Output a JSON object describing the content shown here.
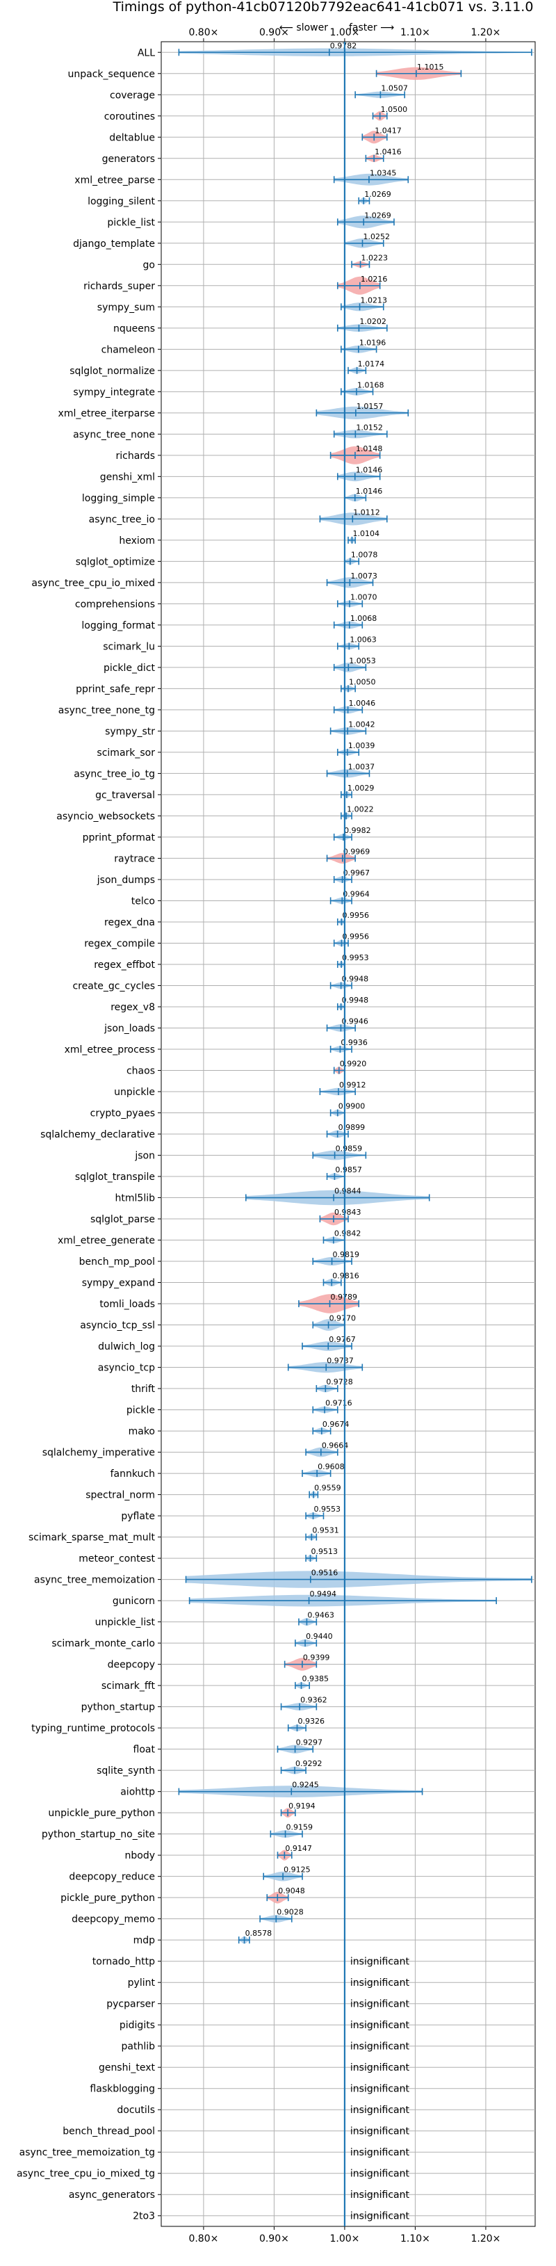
{
  "chart_data": {
    "type": "violin",
    "title": "Timings of python-41cb07120b7792eac641-41cb071 vs. 3.11.0",
    "annotation_slower": "⟵ slower",
    "annotation_faster": "faster ⟶",
    "xlim": [
      0.74,
      1.27
    ],
    "xticks": [
      "0.80×",
      "0.90×",
      "1.00×",
      "1.10×",
      "1.20×"
    ],
    "xtick_values": [
      0.8,
      0.9,
      1.0,
      1.1,
      1.2
    ],
    "grid": true,
    "reference_line": 1.0,
    "insignificant_label": "insignificant",
    "colors": {
      "normal": "#a6c9e6",
      "highlight": "#f4a6a6",
      "line": "#1f77b4",
      "grid": "#b0b0b0"
    },
    "benchmarks": [
      {
        "name": "ALL",
        "label": "0.9782",
        "mean": 0.9782,
        "lo": 0.765,
        "hi": 1.265,
        "w": 0.38,
        "color": "blue"
      },
      {
        "name": "unpack_sequence",
        "label": "1.1015",
        "mean": 1.1015,
        "lo": 1.045,
        "hi": 1.165,
        "w": 0.6,
        "color": "red"
      },
      {
        "name": "coverage",
        "label": "1.0507",
        "mean": 1.0507,
        "lo": 1.015,
        "hi": 1.085,
        "w": 0.3,
        "color": "blue"
      },
      {
        "name": "coroutines",
        "label": "1.0500",
        "mean": 1.05,
        "lo": 1.04,
        "hi": 1.06,
        "w": 0.45,
        "color": "red"
      },
      {
        "name": "deltablue",
        "label": "1.0417",
        "mean": 1.0417,
        "lo": 1.025,
        "hi": 1.06,
        "w": 0.6,
        "color": "red"
      },
      {
        "name": "generators",
        "label": "1.0416",
        "mean": 1.0416,
        "lo": 1.03,
        "hi": 1.055,
        "w": 0.35,
        "color": "red"
      },
      {
        "name": "xml_etree_parse",
        "label": "1.0345",
        "mean": 1.0345,
        "lo": 0.985,
        "hi": 1.09,
        "w": 0.55,
        "color": "blue"
      },
      {
        "name": "logging_silent",
        "label": "1.0269",
        "mean": 1.0269,
        "lo": 1.02,
        "hi": 1.035,
        "w": 0.3,
        "color": "blue"
      },
      {
        "name": "pickle_list",
        "label": "1.0269",
        "mean": 1.0269,
        "lo": 0.99,
        "hi": 1.07,
        "w": 0.6,
        "color": "blue"
      },
      {
        "name": "django_template",
        "label": "1.0252",
        "mean": 1.0252,
        "lo": 1.0,
        "hi": 1.055,
        "w": 0.45,
        "color": "blue"
      },
      {
        "name": "go",
        "label": "1.0223",
        "mean": 1.0223,
        "lo": 1.01,
        "hi": 1.035,
        "w": 0.3,
        "color": "red"
      },
      {
        "name": "richards_super",
        "label": "1.0216",
        "mean": 1.0216,
        "lo": 0.99,
        "hi": 1.05,
        "w": 0.85,
        "color": "red"
      },
      {
        "name": "sympy_sum",
        "label": "1.0213",
        "mean": 1.0213,
        "lo": 0.995,
        "hi": 1.055,
        "w": 0.4,
        "color": "blue"
      },
      {
        "name": "nqueens",
        "label": "1.0202",
        "mean": 1.0202,
        "lo": 0.99,
        "hi": 1.06,
        "w": 0.35,
        "color": "blue"
      },
      {
        "name": "chameleon",
        "label": "1.0196",
        "mean": 1.0196,
        "lo": 0.995,
        "hi": 1.045,
        "w": 0.35,
        "color": "blue"
      },
      {
        "name": "sqlglot_normalize",
        "label": "1.0174",
        "mean": 1.0174,
        "lo": 1.005,
        "hi": 1.03,
        "w": 0.3,
        "color": "blue"
      },
      {
        "name": "sympy_integrate",
        "label": "1.0168",
        "mean": 1.0168,
        "lo": 0.995,
        "hi": 1.04,
        "w": 0.35,
        "color": "blue"
      },
      {
        "name": "xml_etree_iterparse",
        "label": "1.0157",
        "mean": 1.0157,
        "lo": 0.96,
        "hi": 1.09,
        "w": 0.6,
        "color": "blue"
      },
      {
        "name": "async_tree_none",
        "label": "1.0152",
        "mean": 1.0152,
        "lo": 0.985,
        "hi": 1.06,
        "w": 0.4,
        "color": "blue"
      },
      {
        "name": "richards",
        "label": "1.0148",
        "mean": 1.0148,
        "lo": 0.98,
        "hi": 1.05,
        "w": 0.85,
        "color": "red"
      },
      {
        "name": "genshi_xml",
        "label": "1.0146",
        "mean": 1.0146,
        "lo": 0.99,
        "hi": 1.05,
        "w": 0.45,
        "color": "blue"
      },
      {
        "name": "logging_simple",
        "label": "1.0146",
        "mean": 1.0146,
        "lo": 1.0,
        "hi": 1.03,
        "w": 0.35,
        "color": "blue"
      },
      {
        "name": "async_tree_io",
        "label": "1.0112",
        "mean": 1.0112,
        "lo": 0.965,
        "hi": 1.06,
        "w": 0.6,
        "color": "blue"
      },
      {
        "name": "hexiom",
        "label": "1.0104",
        "mean": 1.0104,
        "lo": 1.005,
        "hi": 1.015,
        "w": 0.3,
        "color": "blue"
      },
      {
        "name": "sqlglot_optimize",
        "label": "1.0078",
        "mean": 1.0078,
        "lo": 1.0,
        "hi": 1.02,
        "w": 0.3,
        "color": "blue"
      },
      {
        "name": "async_tree_cpu_io_mixed",
        "label": "1.0073",
        "mean": 1.0073,
        "lo": 0.975,
        "hi": 1.04,
        "w": 0.5,
        "color": "blue"
      },
      {
        "name": "comprehensions",
        "label": "1.0070",
        "mean": 1.007,
        "lo": 0.99,
        "hi": 1.025,
        "w": 0.3,
        "color": "blue"
      },
      {
        "name": "logging_format",
        "label": "1.0068",
        "mean": 1.0068,
        "lo": 0.985,
        "hi": 1.025,
        "w": 0.35,
        "color": "blue"
      },
      {
        "name": "scimark_lu",
        "label": "1.0063",
        "mean": 1.0063,
        "lo": 0.99,
        "hi": 1.02,
        "w": 0.3,
        "color": "blue"
      },
      {
        "name": "pickle_dict",
        "label": "1.0053",
        "mean": 1.0053,
        "lo": 0.985,
        "hi": 1.03,
        "w": 0.45,
        "color": "blue"
      },
      {
        "name": "pprint_safe_repr",
        "label": "1.0050",
        "mean": 1.005,
        "lo": 0.995,
        "hi": 1.015,
        "w": 0.3,
        "color": "blue"
      },
      {
        "name": "async_tree_none_tg",
        "label": "1.0046",
        "mean": 1.0046,
        "lo": 0.985,
        "hi": 1.025,
        "w": 0.35,
        "color": "blue"
      },
      {
        "name": "sympy_str",
        "label": "1.0042",
        "mean": 1.0042,
        "lo": 0.98,
        "hi": 1.03,
        "w": 0.35,
        "color": "blue"
      },
      {
        "name": "scimark_sor",
        "label": "1.0039",
        "mean": 1.0039,
        "lo": 0.99,
        "hi": 1.02,
        "w": 0.3,
        "color": "blue"
      },
      {
        "name": "async_tree_io_tg",
        "label": "1.0037",
        "mean": 1.0037,
        "lo": 0.975,
        "hi": 1.035,
        "w": 0.4,
        "color": "blue"
      },
      {
        "name": "gc_traversal",
        "label": "1.0029",
        "mean": 1.0029,
        "lo": 0.995,
        "hi": 1.01,
        "w": 0.3,
        "color": "blue"
      },
      {
        "name": "asyncio_websockets",
        "label": "1.0022",
        "mean": 1.0022,
        "lo": 0.995,
        "hi": 1.01,
        "w": 0.3,
        "color": "blue"
      },
      {
        "name": "pprint_pformat",
        "label": "0.9982",
        "mean": 0.9982,
        "lo": 0.985,
        "hi": 1.01,
        "w": 0.3,
        "color": "blue"
      },
      {
        "name": "raytrace",
        "label": "0.9969",
        "mean": 0.9969,
        "lo": 0.975,
        "hi": 1.015,
        "w": 0.5,
        "color": "red"
      },
      {
        "name": "json_dumps",
        "label": "0.9967",
        "mean": 0.9967,
        "lo": 0.985,
        "hi": 1.01,
        "w": 0.3,
        "color": "blue"
      },
      {
        "name": "telco",
        "label": "0.9964",
        "mean": 0.9964,
        "lo": 0.98,
        "hi": 1.01,
        "w": 0.3,
        "color": "blue"
      },
      {
        "name": "regex_dna",
        "label": "0.9956",
        "mean": 0.9956,
        "lo": 0.99,
        "hi": 1.0,
        "w": 0.3,
        "color": "blue"
      },
      {
        "name": "regex_compile",
        "label": "0.9956",
        "mean": 0.9956,
        "lo": 0.985,
        "hi": 1.005,
        "w": 0.3,
        "color": "blue"
      },
      {
        "name": "regex_effbot",
        "label": "0.9953",
        "mean": 0.9953,
        "lo": 0.99,
        "hi": 1.0,
        "w": 0.3,
        "color": "blue"
      },
      {
        "name": "create_gc_cycles",
        "label": "0.9948",
        "mean": 0.9948,
        "lo": 0.98,
        "hi": 1.01,
        "w": 0.3,
        "color": "blue"
      },
      {
        "name": "regex_v8",
        "label": "0.9948",
        "mean": 0.9948,
        "lo": 0.99,
        "hi": 1.0,
        "w": 0.3,
        "color": "blue"
      },
      {
        "name": "json_loads",
        "label": "0.9946",
        "mean": 0.9946,
        "lo": 0.975,
        "hi": 1.015,
        "w": 0.35,
        "color": "blue"
      },
      {
        "name": "xml_etree_process",
        "label": "0.9936",
        "mean": 0.9936,
        "lo": 0.98,
        "hi": 1.01,
        "w": 0.3,
        "color": "blue"
      },
      {
        "name": "chaos",
        "label": "0.9920",
        "mean": 0.992,
        "lo": 0.985,
        "hi": 1.0,
        "w": 0.35,
        "color": "red"
      },
      {
        "name": "unpickle",
        "label": "0.9912",
        "mean": 0.9912,
        "lo": 0.965,
        "hi": 1.015,
        "w": 0.35,
        "color": "blue"
      },
      {
        "name": "crypto_pyaes",
        "label": "0.9900",
        "mean": 0.99,
        "lo": 0.98,
        "hi": 1.0,
        "w": 0.3,
        "color": "blue"
      },
      {
        "name": "sqlalchemy_declarative",
        "label": "0.9899",
        "mean": 0.9899,
        "lo": 0.975,
        "hi": 1.005,
        "w": 0.35,
        "color": "blue"
      },
      {
        "name": "json",
        "label": "0.9859",
        "mean": 0.9859,
        "lo": 0.955,
        "hi": 1.03,
        "w": 0.45,
        "color": "blue"
      },
      {
        "name": "sqlglot_transpile",
        "label": "0.9857",
        "mean": 0.9857,
        "lo": 0.975,
        "hi": 1.0,
        "w": 0.3,
        "color": "blue"
      },
      {
        "name": "html5lib",
        "label": "0.9844",
        "mean": 0.9844,
        "lo": 0.86,
        "hi": 1.12,
        "w": 0.7,
        "color": "blue"
      },
      {
        "name": "sqlglot_parse",
        "label": "0.9843",
        "mean": 0.9843,
        "lo": 0.965,
        "hi": 1.005,
        "w": 0.6,
        "color": "red"
      },
      {
        "name": "xml_etree_generate",
        "label": "0.9842",
        "mean": 0.9842,
        "lo": 0.97,
        "hi": 1.0,
        "w": 0.3,
        "color": "blue"
      },
      {
        "name": "bench_mp_pool",
        "label": "0.9819",
        "mean": 0.9819,
        "lo": 0.955,
        "hi": 1.01,
        "w": 0.4,
        "color": "blue"
      },
      {
        "name": "sympy_expand",
        "label": "0.9816",
        "mean": 0.9816,
        "lo": 0.97,
        "hi": 0.995,
        "w": 0.35,
        "color": "blue"
      },
      {
        "name": "tomli_loads",
        "label": "0.9789",
        "mean": 0.9789,
        "lo": 0.935,
        "hi": 1.02,
        "w": 0.9,
        "color": "red"
      },
      {
        "name": "asyncio_tcp_ssl",
        "label": "0.9770",
        "mean": 0.977,
        "lo": 0.955,
        "hi": 1.0,
        "w": 0.55,
        "color": "blue"
      },
      {
        "name": "dulwich_log",
        "label": "0.9767",
        "mean": 0.9767,
        "lo": 0.94,
        "hi": 1.01,
        "w": 0.45,
        "color": "blue"
      },
      {
        "name": "asyncio_tcp",
        "label": "0.9737",
        "mean": 0.9737,
        "lo": 0.92,
        "hi": 1.025,
        "w": 0.5,
        "color": "blue"
      },
      {
        "name": "thrift",
        "label": "0.9728",
        "mean": 0.9728,
        "lo": 0.96,
        "hi": 0.99,
        "w": 0.35,
        "color": "blue"
      },
      {
        "name": "pickle",
        "label": "0.9716",
        "mean": 0.9716,
        "lo": 0.955,
        "hi": 0.99,
        "w": 0.3,
        "color": "blue"
      },
      {
        "name": "mako",
        "label": "0.9674",
        "mean": 0.9674,
        "lo": 0.955,
        "hi": 0.98,
        "w": 0.3,
        "color": "blue"
      },
      {
        "name": "sqlalchemy_imperative",
        "label": "0.9664",
        "mean": 0.9664,
        "lo": 0.945,
        "hi": 0.99,
        "w": 0.45,
        "color": "blue"
      },
      {
        "name": "fannkuch",
        "label": "0.9608",
        "mean": 0.9608,
        "lo": 0.94,
        "hi": 0.98,
        "w": 0.35,
        "color": "blue"
      },
      {
        "name": "spectral_norm",
        "label": "0.9559",
        "mean": 0.9559,
        "lo": 0.95,
        "hi": 0.962,
        "w": 0.3,
        "color": "blue"
      },
      {
        "name": "pyflate",
        "label": "0.9553",
        "mean": 0.9553,
        "lo": 0.945,
        "hi": 0.97,
        "w": 0.3,
        "color": "blue"
      },
      {
        "name": "scimark_sparse_mat_mult",
        "label": "0.9531",
        "mean": 0.9531,
        "lo": 0.945,
        "hi": 0.96,
        "w": 0.3,
        "color": "blue"
      },
      {
        "name": "meteor_contest",
        "label": "0.9513",
        "mean": 0.9513,
        "lo": 0.945,
        "hi": 0.96,
        "w": 0.3,
        "color": "blue"
      },
      {
        "name": "async_tree_memoization",
        "label": "0.9516",
        "mean": 0.9516,
        "lo": 0.775,
        "hi": 1.265,
        "w": 0.8,
        "color": "blue"
      },
      {
        "name": "gunicorn",
        "label": "0.9494",
        "mean": 0.9494,
        "lo": 0.78,
        "hi": 1.215,
        "w": 0.55,
        "color": "blue"
      },
      {
        "name": "unpickle_list",
        "label": "0.9463",
        "mean": 0.9463,
        "lo": 0.935,
        "hi": 0.96,
        "w": 0.35,
        "color": "blue"
      },
      {
        "name": "scimark_monte_carlo",
        "label": "0.9440",
        "mean": 0.944,
        "lo": 0.93,
        "hi": 0.96,
        "w": 0.35,
        "color": "blue"
      },
      {
        "name": "deepcopy",
        "label": "0.9399",
        "mean": 0.9399,
        "lo": 0.915,
        "hi": 0.96,
        "w": 0.6,
        "color": "red"
      },
      {
        "name": "scimark_fft",
        "label": "0.9385",
        "mean": 0.9385,
        "lo": 0.93,
        "hi": 0.95,
        "w": 0.3,
        "color": "blue"
      },
      {
        "name": "python_startup",
        "label": "0.9362",
        "mean": 0.9362,
        "lo": 0.91,
        "hi": 0.96,
        "w": 0.35,
        "color": "blue"
      },
      {
        "name": "typing_runtime_protocols",
        "label": "0.9326",
        "mean": 0.9326,
        "lo": 0.92,
        "hi": 0.945,
        "w": 0.3,
        "color": "blue"
      },
      {
        "name": "float",
        "label": "0.9297",
        "mean": 0.9297,
        "lo": 0.905,
        "hi": 0.955,
        "w": 0.4,
        "color": "blue"
      },
      {
        "name": "sqlite_synth",
        "label": "0.9292",
        "mean": 0.9292,
        "lo": 0.91,
        "hi": 0.945,
        "w": 0.35,
        "color": "blue"
      },
      {
        "name": "aiohttp",
        "label": "0.9245",
        "mean": 0.9245,
        "lo": 0.765,
        "hi": 1.11,
        "w": 0.55,
        "color": "blue"
      },
      {
        "name": "unpickle_pure_python",
        "label": "0.9194",
        "mean": 0.9194,
        "lo": 0.91,
        "hi": 0.93,
        "w": 0.45,
        "color": "red"
      },
      {
        "name": "python_startup_no_site",
        "label": "0.9159",
        "mean": 0.9159,
        "lo": 0.895,
        "hi": 0.94,
        "w": 0.35,
        "color": "blue"
      },
      {
        "name": "nbody",
        "label": "0.9147",
        "mean": 0.9147,
        "lo": 0.905,
        "hi": 0.925,
        "w": 0.5,
        "color": "red"
      },
      {
        "name": "deepcopy_reduce",
        "label": "0.9125",
        "mean": 0.9125,
        "lo": 0.885,
        "hi": 0.94,
        "w": 0.45,
        "color": "blue"
      },
      {
        "name": "pickle_pure_python",
        "label": "0.9048",
        "mean": 0.9048,
        "lo": 0.89,
        "hi": 0.92,
        "w": 0.55,
        "color": "red"
      },
      {
        "name": "deepcopy_memo",
        "label": "0.9028",
        "mean": 0.9028,
        "lo": 0.88,
        "hi": 0.925,
        "w": 0.35,
        "color": "blue"
      },
      {
        "name": "mdp",
        "label": "0.8578",
        "mean": 0.8578,
        "lo": 0.85,
        "hi": 0.865,
        "w": 0.35,
        "color": "blue"
      },
      {
        "name": "tornado_http",
        "insignificant": true
      },
      {
        "name": "pylint",
        "insignificant": true
      },
      {
        "name": "pycparser",
        "insignificant": true
      },
      {
        "name": "pidigits",
        "insignificant": true
      },
      {
        "name": "pathlib",
        "insignificant": true
      },
      {
        "name": "genshi_text",
        "insignificant": true
      },
      {
        "name": "flaskblogging",
        "insignificant": true
      },
      {
        "name": "docutils",
        "insignificant": true
      },
      {
        "name": "bench_thread_pool",
        "insignificant": true
      },
      {
        "name": "async_tree_memoization_tg",
        "insignificant": true
      },
      {
        "name": "async_tree_cpu_io_mixed_tg",
        "insignificant": true
      },
      {
        "name": "async_generators",
        "insignificant": true
      },
      {
        "name": "2to3",
        "insignificant": true
      }
    ]
  }
}
